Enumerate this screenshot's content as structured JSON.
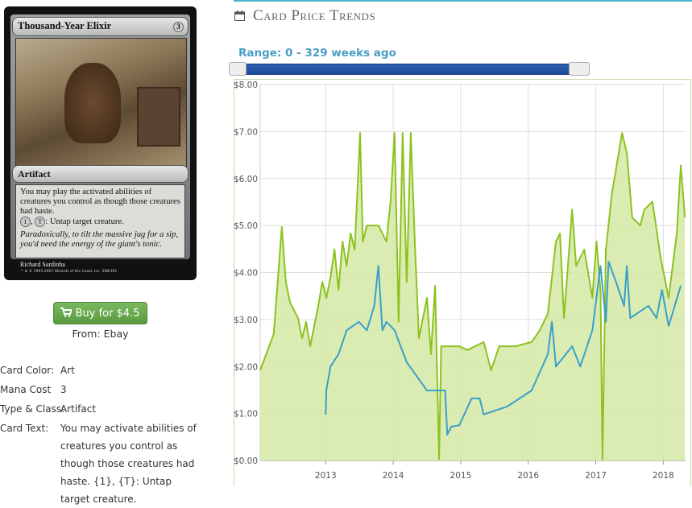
{
  "card": {
    "name": "Thousand-Year Elixir",
    "mana": "3",
    "type_line": "Artifact",
    "rules": "You may play the activated abilities of creatures you control as though those creatures had haste.",
    "ability": [
      {
        "symbol": "1"
      },
      {
        "text": ", "
      },
      {
        "symbol": "T"
      },
      {
        "text": ": Untap target creature."
      }
    ],
    "flavor": "Paradoxically, to tilt the massive jug for a sip, you'd need the energy of the giant's tonic.",
    "artist": "Richard Sardinha",
    "copyright": "™ & © 1993-2007 Wizards of the Coast, Inc. 268/301"
  },
  "buy": {
    "button": "Buy for $4.5",
    "source": "From: Ebay"
  },
  "details": [
    [
      "Card Color:",
      "Art"
    ],
    [
      "Mana Cost",
      "3"
    ],
    [
      "Type & Class:",
      "Artifact"
    ],
    [
      "Card Text:",
      "You may activate abilities of creatures you control as though those creatures had haste. {1}, {T}: Untap target creature."
    ]
  ],
  "panel": {
    "title": "Card Price Trends",
    "range": "Range: 0 - 329 weeks ago"
  },
  "chart_data": {
    "type": "line",
    "xlim": [
      2012.03,
      2018.33
    ],
    "xticks": [
      2013,
      2014,
      2015,
      2016,
      2017,
      2018
    ],
    "ylim": [
      0,
      8
    ],
    "yticks": [
      {
        "value": 0,
        "label": "$0.00"
      },
      {
        "value": 1,
        "label": "$1.00"
      },
      {
        "value": 2,
        "label": "$2.00"
      },
      {
        "value": 3,
        "label": "$3.00"
      },
      {
        "value": 4,
        "label": "$4.00"
      },
      {
        "value": 5,
        "label": "$5.00"
      },
      {
        "value": 6,
        "label": "$6.00"
      },
      {
        "value": 7,
        "label": "$7.00"
      },
      {
        "value": 8,
        "label": "$8.00"
      }
    ],
    "grid": true,
    "series": [
      {
        "color": "#8cc21f",
        "fill": "#d5e9a6",
        "x": [
          2012.03,
          2012.23,
          2012.35,
          2012.41,
          2012.47,
          2012.59,
          2012.65,
          2012.71,
          2012.77,
          2012.89,
          2012.95,
          2013.01,
          2013.07,
          2013.13,
          2013.19,
          2013.25,
          2013.31,
          2013.37,
          2013.43,
          2013.51,
          2013.55,
          2013.61,
          2013.78,
          2013.9,
          2013.96,
          2014.02,
          2014.08,
          2014.14,
          2014.2,
          2014.26,
          2014.32,
          2014.38,
          2014.5,
          2014.56,
          2014.62,
          2014.68,
          2014.71,
          2014.98,
          2015.1,
          2015.34,
          2015.45,
          2015.57,
          2015.81,
          2016.05,
          2016.17,
          2016.29,
          2016.41,
          2016.47,
          2016.53,
          2016.65,
          2016.71,
          2016.83,
          2016.95,
          2017.01,
          2017.07,
          2017.1,
          2017.15,
          2017.24,
          2017.3,
          2017.39,
          2017.46,
          2017.54,
          2017.66,
          2017.72,
          2017.84,
          2017.96,
          2018.08,
          2018.2,
          2018.26,
          2018.32
        ],
        "values": [
          1.92,
          2.69,
          4.97,
          3.8,
          3.37,
          3.03,
          2.6,
          2.95,
          2.43,
          3.29,
          3.8,
          3.46,
          3.89,
          4.49,
          3.63,
          4.66,
          4.14,
          4.83,
          4.49,
          6.97,
          4.66,
          5.0,
          5.0,
          4.66,
          5.51,
          6.97,
          2.95,
          6.97,
          3.8,
          6.97,
          4.66,
          2.6,
          3.46,
          2.26,
          3.72,
          0.03,
          2.43,
          2.43,
          2.35,
          2.52,
          1.92,
          2.43,
          2.43,
          2.52,
          2.77,
          3.12,
          4.66,
          4.83,
          3.03,
          5.34,
          4.14,
          4.49,
          3.46,
          4.66,
          3.63,
          0.03,
          4.49,
          5.68,
          6.2,
          6.97,
          6.54,
          5.17,
          5.0,
          5.34,
          5.51,
          4.32,
          3.46,
          4.83,
          6.28,
          5.17
        ]
      },
      {
        "color": "#3a9fc9",
        "x": [
          2013.0,
          2013.01,
          2013.07,
          2013.19,
          2013.31,
          2013.49,
          2013.61,
          2013.72,
          2013.78,
          2013.84,
          2013.9,
          2014.02,
          2014.2,
          2014.5,
          2014.77,
          2014.8,
          2014.86,
          2014.98,
          2015.16,
          2015.28,
          2015.34,
          2015.69,
          2016.05,
          2016.29,
          2016.35,
          2016.41,
          2016.65,
          2016.77,
          2016.95,
          2017.07,
          2017.15,
          2017.19,
          2017.3,
          2017.42,
          2017.46,
          2017.51,
          2017.78,
          2017.9,
          2017.98,
          2018.08,
          2018.26
        ],
        "values": [
          0.98,
          1.49,
          2.0,
          2.26,
          2.77,
          2.95,
          2.77,
          3.29,
          4.14,
          2.77,
          2.95,
          2.77,
          2.09,
          1.49,
          1.49,
          0.55,
          0.72,
          0.75,
          1.32,
          1.32,
          0.98,
          1.15,
          1.49,
          2.26,
          2.95,
          2.0,
          2.43,
          2.0,
          2.77,
          4.14,
          2.95,
          4.23,
          3.8,
          3.29,
          4.14,
          3.03,
          3.29,
          3.03,
          3.63,
          2.86,
          3.72
        ]
      }
    ]
  }
}
